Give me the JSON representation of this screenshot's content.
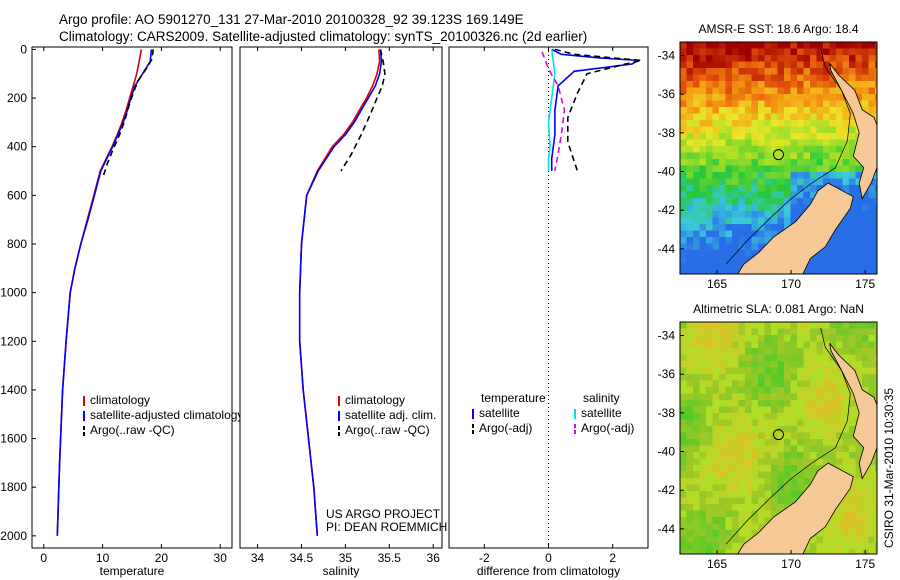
{
  "header": {
    "line1": "Argo profile: AO 5901270_131 27-Mar-2010 20100328_92 39.123S 169.149E",
    "line2": "Climatology: CARS2009. Satellite-adjusted climatology: synTS_20100326.nc (2d earlier)"
  },
  "side_stamp": "CSIRO 31-Mar-2010 10:30:35",
  "colors": {
    "climatology": "#e00000",
    "satellite": "#0000ff",
    "argo": "#000000",
    "cyan": "#00e0e0",
    "magenta": "#e000e0"
  },
  "chart_data": [
    {
      "id": "temperature",
      "type": "line",
      "xlabel": "temperature",
      "ylabel": "",
      "xlim": [
        -2,
        32
      ],
      "ylim": [
        2050,
        -10
      ],
      "y_reversed": true,
      "xticks": [
        0,
        10,
        20,
        30
      ],
      "yticks": [
        0,
        200,
        400,
        600,
        800,
        1000,
        1200,
        1400,
        1600,
        1800,
        2000
      ],
      "legend": {
        "position": "lower-right",
        "items": [
          "climatology",
          "satellite-adjusted climatology",
          "Argo(..raw -QC)"
        ]
      },
      "series": [
        {
          "name": "climatology",
          "color": "red",
          "dash": "solid",
          "x": [
            16.6,
            16.2,
            15.8,
            15.2,
            14.6,
            14.0,
            13.3,
            12.5,
            11.6,
            10.6,
            9.6,
            8.5,
            7.4,
            6.3,
            5.3,
            4.5,
            3.8,
            3.2,
            2.7,
            2.3
          ],
          "y": [
            0,
            50,
            100,
            150,
            200,
            250,
            300,
            350,
            400,
            450,
            500,
            600,
            700,
            800,
            900,
            1000,
            1200,
            1400,
            1700,
            2000
          ]
        },
        {
          "name": "satellite-adjusted climatology",
          "color": "blue",
          "dash": "solid",
          "x": [
            18.3,
            18.1,
            16.8,
            15.5,
            14.8,
            14.2,
            13.5,
            12.6,
            11.7,
            10.7,
            9.7,
            8.6,
            7.5,
            6.3,
            5.3,
            4.5,
            3.8,
            3.2,
            2.7,
            2.3
          ],
          "y": [
            0,
            50,
            100,
            150,
            200,
            250,
            300,
            350,
            400,
            450,
            500,
            600,
            700,
            800,
            900,
            1000,
            1200,
            1400,
            1700,
            2000
          ]
        },
        {
          "name": "Argo(..raw -QC)",
          "color": "black",
          "dash": "dashed",
          "x": [
            18.6,
            18.4,
            17.4,
            16.0,
            15.2,
            14.5,
            13.8,
            12.9,
            11.8,
            10.8,
            10.0
          ],
          "y": [
            0,
            40,
            80,
            130,
            180,
            230,
            290,
            350,
            410,
            470,
            530
          ]
        }
      ]
    },
    {
      "id": "salinity",
      "type": "line",
      "xlabel": "salinity",
      "ylabel": "",
      "xlim": [
        33.8,
        36.1
      ],
      "ylim": [
        2050,
        -10
      ],
      "y_reversed": true,
      "xticks": [
        34,
        34.5,
        35,
        35.5,
        36
      ],
      "legend": {
        "position": "lower-right",
        "items": [
          "climatology",
          "satellite adj. clim.",
          "Argo(..raw -QC)"
        ]
      },
      "annotations": [
        "US ARGO PROJECT",
        "PI: DEAN ROEMMICH"
      ],
      "series": [
        {
          "name": "climatology",
          "color": "red",
          "dash": "solid",
          "x": [
            35.38,
            35.39,
            35.36,
            35.31,
            35.24,
            35.16,
            35.08,
            34.98,
            34.85,
            34.68,
            34.56,
            34.5,
            34.48,
            34.48,
            34.52,
            34.58,
            34.64,
            34.68
          ],
          "y": [
            0,
            50,
            100,
            150,
            200,
            250,
            300,
            350,
            400,
            500,
            600,
            800,
            1000,
            1200,
            1400,
            1600,
            1800,
            2000
          ]
        },
        {
          "name": "satellite adj. clim.",
          "color": "blue",
          "dash": "solid",
          "x": [
            35.4,
            35.41,
            35.39,
            35.34,
            35.26,
            35.18,
            35.1,
            35.0,
            34.87,
            34.69,
            34.56,
            34.5,
            34.48,
            34.48,
            34.52,
            34.58,
            34.64,
            34.68
          ],
          "y": [
            0,
            50,
            100,
            150,
            200,
            250,
            300,
            350,
            400,
            500,
            600,
            800,
            1000,
            1200,
            1400,
            1600,
            1800,
            2000
          ]
        },
        {
          "name": "Argo(..raw -QC)",
          "color": "black",
          "dash": "dashed",
          "x": [
            35.4,
            35.43,
            35.45,
            35.42,
            35.36,
            35.28,
            35.18,
            35.07,
            34.95
          ],
          "y": [
            0,
            50,
            100,
            150,
            200,
            270,
            350,
            430,
            500
          ]
        }
      ]
    },
    {
      "id": "difference",
      "type": "line",
      "xlabel": "difference from climatology",
      "ylabel": "",
      "xlim": [
        -3.1,
        3.1
      ],
      "ylim": [
        2050,
        -10
      ],
      "y_reversed": true,
      "xticks": [
        -2,
        0,
        2
      ],
      "legend": {
        "position": "lower-center",
        "columns": [
          {
            "title": "temperature",
            "items": [
              "satellite",
              "Argo(-adj)"
            ]
          },
          {
            "title": "salinity",
            "items": [
              "satellite",
              "Argo(-adj)"
            ]
          }
        ]
      },
      "series": [
        {
          "name": "temperature satellite",
          "color": "blue",
          "dash": "solid",
          "x": [
            0.1,
            0.4,
            1.6,
            2.8,
            2.6,
            0.8,
            0.3,
            0.2,
            0.2,
            0.1,
            0.1
          ],
          "y": [
            0,
            20,
            35,
            45,
            60,
            90,
            150,
            250,
            350,
            450,
            500
          ]
        },
        {
          "name": "temperature Argo(-adj)",
          "color": "black",
          "dash": "dashed",
          "x": [
            0.2,
            0.8,
            2.0,
            2.9,
            2.4,
            1.2,
            0.9,
            0.6,
            0.6,
            0.8,
            0.9
          ],
          "y": [
            0,
            20,
            35,
            45,
            60,
            100,
            180,
            280,
            380,
            460,
            500
          ]
        },
        {
          "name": "salinity satellite",
          "color": "cyan",
          "dash": "solid",
          "x": [
            0.1,
            0.2,
            0.1,
            0.0,
            0.05,
            0.0,
            0.0
          ],
          "y": [
            0,
            100,
            200,
            300,
            400,
            450,
            500
          ]
        },
        {
          "name": "salinity Argo(-adj)",
          "color": "magenta",
          "dash": "dashed",
          "x": [
            -0.2,
            0.0,
            0.3,
            0.5,
            0.4,
            0.3,
            0.2
          ],
          "y": [
            10,
            80,
            150,
            250,
            350,
            430,
            500
          ]
        }
      ]
    },
    {
      "id": "sst-map",
      "type": "heatmap",
      "title": "AMSR-E SST: 18.6  Argo: 18.4",
      "xticks": [
        165,
        170,
        175
      ],
      "yticks": [
        -34,
        -36,
        -38,
        -40,
        -42,
        -44
      ],
      "xlim": [
        162.5,
        175.8
      ],
      "ylim": [
        -45.3,
        -33.3
      ],
      "argo_position": {
        "lon": 169.149,
        "lat": -39.123
      }
    },
    {
      "id": "sla-map",
      "type": "heatmap",
      "title": "Altimetric SLA: 0.081  Argo: NaN",
      "xticks": [
        165,
        170,
        175
      ],
      "yticks": [
        -34,
        -36,
        -38,
        -40,
        -42,
        -44
      ],
      "xlim": [
        162.5,
        175.8
      ],
      "ylim": [
        -45.3,
        -33.3
      ],
      "argo_position": {
        "lon": 169.149,
        "lat": -39.123
      }
    }
  ]
}
